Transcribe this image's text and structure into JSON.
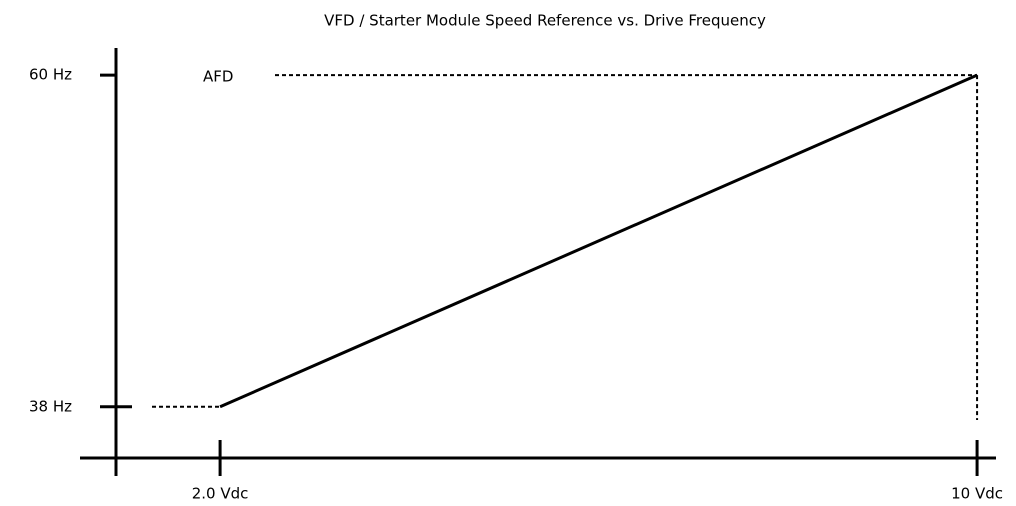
{
  "chart_data": {
    "type": "line",
    "title": "VFD / Starter Module Speed Reference vs. Drive Frequency",
    "annotation": "AFD",
    "x": [
      2,
      10
    ],
    "values": [
      38,
      60
    ],
    "color": "#000000",
    "xlim": [
      0.9,
      10.2
    ],
    "ylim": [
      34.6,
      61.8
    ],
    "xticks": [
      {
        "value": 2,
        "label": "2.0 Vdc"
      },
      {
        "value": 10,
        "label": "10 Vdc"
      }
    ],
    "yticks": [
      {
        "value": 38,
        "label": "38 Hz"
      },
      {
        "value": 60,
        "label": "60 Hz"
      }
    ]
  }
}
